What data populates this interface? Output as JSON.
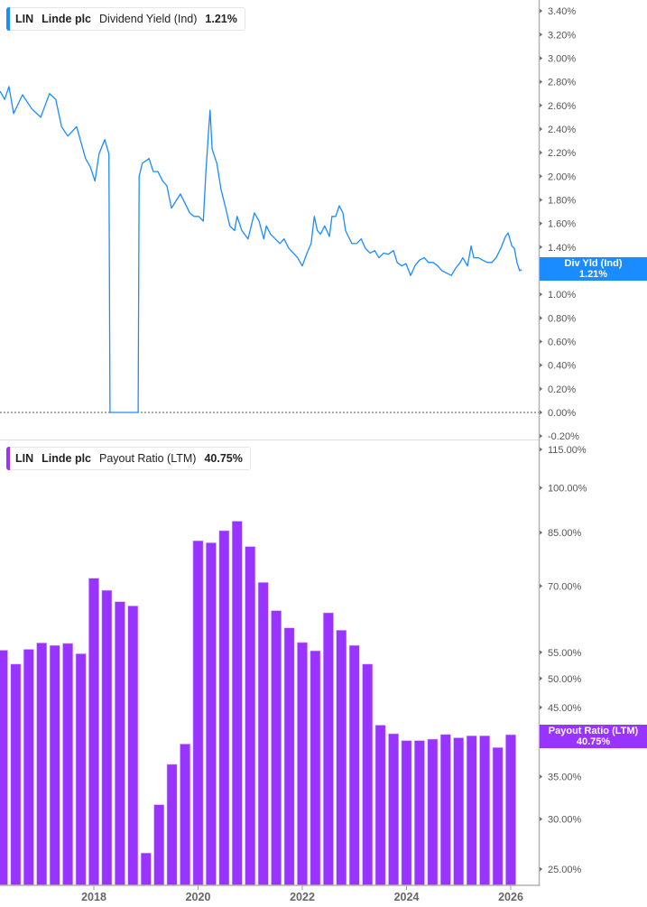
{
  "colors": {
    "yield": "#1a8cff",
    "payout": "#9933ff",
    "axis": "#b3b3b3",
    "tick_text": "#555555"
  },
  "top_legend": {
    "ticker": "LIN",
    "company": "Linde plc",
    "metric": "Dividend Yield (Ind)",
    "value": "1.21%"
  },
  "bottom_legend": {
    "ticker": "LIN",
    "company": "Linde plc",
    "metric": "Payout Ratio (LTM)",
    "value": "40.75%"
  },
  "top_flag": {
    "label": "Div Yld (Ind)",
    "value": "1.21%"
  },
  "bottom_flag": {
    "label": "Payout Ratio (LTM)",
    "value": "40.75%"
  },
  "chart_data": [
    {
      "type": "line",
      "name": "Dividend Yield (Ind)",
      "y_unit": "%",
      "ylim": [
        -0.2,
        3.5
      ],
      "y_ticks": [
        "3.40%",
        "3.20%",
        "3.00%",
        "2.80%",
        "2.60%",
        "2.40%",
        "2.20%",
        "2.00%",
        "1.80%",
        "1.60%",
        "1.40%",
        "1.20%",
        "1.00%",
        "0.80%",
        "0.60%",
        "0.40%",
        "0.20%",
        "0.00%",
        "-0.20%"
      ],
      "zero_line": "dotted",
      "grid": false,
      "x": [
        2016.2,
        2016.29,
        2016.37,
        2016.46,
        2016.63,
        2016.81,
        2016.98,
        2017.15,
        2017.27,
        2017.38,
        2017.5,
        2017.67,
        2017.84,
        2017.93,
        2018.02,
        2018.1,
        2018.21,
        2018.29,
        2018.31,
        2018.85,
        2018.87,
        2018.93,
        2019.06,
        2019.14,
        2019.23,
        2019.32,
        2019.4,
        2019.49,
        2019.66,
        2019.75,
        2019.84,
        2019.92,
        2020.01,
        2020.1,
        2020.15,
        2020.2,
        2020.23,
        2020.27,
        2020.36,
        2020.44,
        2020.53,
        2020.61,
        2020.7,
        2020.75,
        2020.84,
        2020.96,
        2021.08,
        2021.17,
        2021.26,
        2021.31,
        2021.39,
        2021.48,
        2021.57,
        2021.65,
        2021.74,
        2021.83,
        2021.91,
        2022.0,
        2022.09,
        2022.17,
        2022.23,
        2022.29,
        2022.35,
        2022.43,
        2022.52,
        2022.57,
        2022.64,
        2022.71,
        2022.78,
        2022.83,
        2022.95,
        2023.04,
        2023.13,
        2023.21,
        2023.3,
        2023.39,
        2023.47,
        2023.56,
        2023.65,
        2023.75,
        2023.82,
        2023.91,
        2023.99,
        2024.08,
        2024.16,
        2024.25,
        2024.34,
        2024.42,
        2024.51,
        2024.6,
        2024.68,
        2024.77,
        2024.86,
        2024.94,
        2025.03,
        2025.08,
        2025.17,
        2025.24,
        2025.29,
        2025.38,
        2025.46,
        2025.55,
        2025.64,
        2025.72,
        2025.81,
        2025.9,
        2025.95,
        2026.02,
        2026.07,
        2026.12,
        2026.17,
        2026.21
      ],
      "y": [
        2.72,
        2.65,
        2.76,
        2.53,
        2.69,
        2.57,
        2.5,
        2.7,
        2.65,
        2.42,
        2.34,
        2.42,
        2.15,
        2.08,
        1.96,
        2.19,
        2.31,
        2.19,
        0.0,
        0.0,
        2.0,
        2.11,
        2.15,
        2.04,
        2.04,
        1.96,
        1.92,
        1.73,
        1.85,
        1.77,
        1.69,
        1.66,
        1.66,
        1.62,
        2.04,
        2.38,
        2.56,
        2.23,
        2.11,
        1.89,
        1.73,
        1.58,
        1.54,
        1.66,
        1.54,
        1.47,
        1.69,
        1.62,
        1.47,
        1.58,
        1.51,
        1.47,
        1.43,
        1.47,
        1.39,
        1.35,
        1.31,
        1.24,
        1.35,
        1.43,
        1.66,
        1.54,
        1.51,
        1.58,
        1.49,
        1.66,
        1.66,
        1.75,
        1.69,
        1.54,
        1.43,
        1.43,
        1.47,
        1.39,
        1.35,
        1.37,
        1.31,
        1.35,
        1.34,
        1.37,
        1.27,
        1.24,
        1.26,
        1.16,
        1.24,
        1.29,
        1.31,
        1.27,
        1.27,
        1.24,
        1.2,
        1.18,
        1.16,
        1.22,
        1.27,
        1.31,
        1.24,
        1.41,
        1.31,
        1.31,
        1.29,
        1.27,
        1.27,
        1.31,
        1.39,
        1.49,
        1.52,
        1.41,
        1.39,
        1.27,
        1.2,
        1.21
      ],
      "last_value": 1.21
    },
    {
      "type": "bar",
      "name": "Payout Ratio (LTM)",
      "y_unit": "%",
      "y_scale": "log",
      "ylim": [
        24,
        118
      ],
      "y_ticks": [
        115,
        100,
        85,
        70,
        55,
        50,
        45,
        40,
        35,
        30,
        25
      ],
      "y_tick_labels": [
        "115.00%",
        "100.00%",
        "85.00%",
        "70.00%",
        "55.00%",
        "50.00%",
        "45.00%",
        "40.00%",
        "35.00%",
        "30.00%",
        "25.00%"
      ],
      "x_ticks": [
        "2018",
        "2020",
        "2022",
        "2024",
        "2026"
      ],
      "categories": [
        "2016-03",
        "2016-06",
        "2016-09",
        "2016-12",
        "2017-03",
        "2017-06",
        "2017-09",
        "2017-12",
        "2018-03",
        "2018-06",
        "2018-09",
        "2018-12",
        "2019-03",
        "2019-06",
        "2019-09",
        "2019-12",
        "2020-03",
        "2020-06",
        "2020-09",
        "2020-12",
        "2021-03",
        "2021-06",
        "2021-09",
        "2021-12",
        "2022-03",
        "2022-06",
        "2022-09",
        "2022-12",
        "2023-03",
        "2023-06",
        "2023-09",
        "2023-12",
        "2024-03",
        "2024-06",
        "2024-09",
        "2024-12",
        "2025-03",
        "2025-06",
        "2025-09",
        "2025-12"
      ],
      "values": [
        55.4,
        52.7,
        55.6,
        56.9,
        56.4,
        56.8,
        54.7,
        72.0,
        68.9,
        66.1,
        65.1,
        26.5,
        31.6,
        36.6,
        39.4,
        82.5,
        81.9,
        85.6,
        88.6,
        80.8,
        70.9,
        64.0,
        60.1,
        57.0,
        55.3,
        63.5,
        59.6,
        56.4,
        52.7,
        42.2,
        40.9,
        39.9,
        39.9,
        40.1,
        40.8,
        40.3,
        40.6,
        40.6,
        38.9,
        40.75
      ],
      "grid": false
    }
  ]
}
